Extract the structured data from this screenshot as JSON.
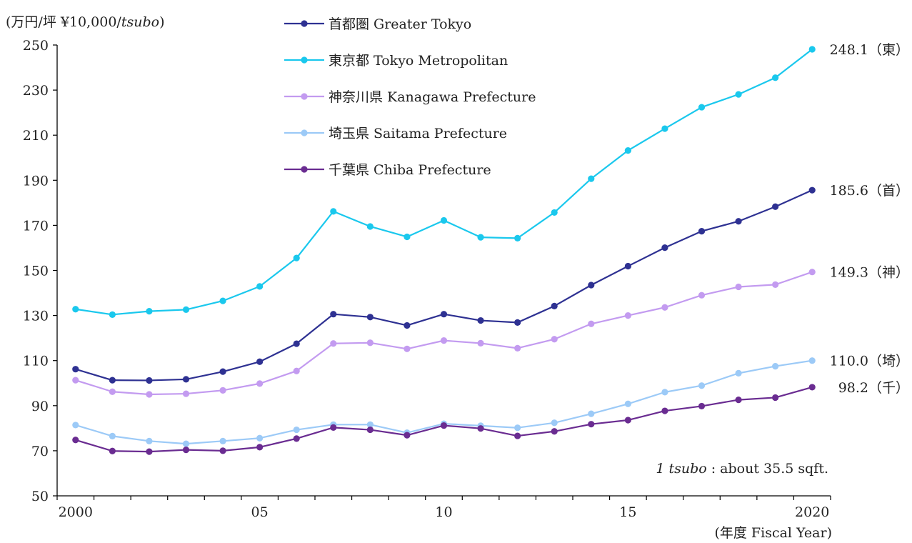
{
  "chart_data": {
    "type": "line",
    "ylabel": {
      "prefix": "(万円/坪 ¥10,000/",
      "italic": "tsubo",
      "suffix": ")"
    },
    "xlabel": "(年度 Fiscal Year)",
    "ylim": [
      50,
      250
    ],
    "yticks": [
      50,
      70,
      90,
      110,
      130,
      150,
      170,
      190,
      210,
      230,
      250
    ],
    "xlim": [
      1999.5,
      2020.5
    ],
    "xticks": [
      {
        "value": 2000,
        "label": "2000"
      },
      {
        "value": 2005,
        "label": "05"
      },
      {
        "value": 2010,
        "label": "10"
      },
      {
        "value": 2015,
        "label": "15"
      },
      {
        "value": 2020,
        "label": "2020"
      }
    ],
    "x": [
      2000,
      2001,
      2002,
      2003,
      2004,
      2005,
      2006,
      2007,
      2008,
      2009,
      2010,
      2011,
      2012,
      2013,
      2014,
      2015,
      2016,
      2017,
      2018,
      2019,
      2020
    ],
    "series": [
      {
        "name": "首都圏 Greater Tokyo",
        "color": "#2e3192",
        "values": [
          106.2,
          101.3,
          101.2,
          101.7,
          105.1,
          109.5,
          117.5,
          130.6,
          129.3,
          125.6,
          130.6,
          127.8,
          126.9,
          134.2,
          143.5,
          151.9,
          160.1,
          167.4,
          171.8,
          178.3,
          185.6
        ],
        "end_label": "185.6（首）"
      },
      {
        "name": "東京都 Tokyo Metropolitan",
        "color": "#1ac8ed",
        "values": [
          132.8,
          130.4,
          131.9,
          132.6,
          136.5,
          142.9,
          155.5,
          176.2,
          169.5,
          164.9,
          172.2,
          164.7,
          164.3,
          175.7,
          190.7,
          203.2,
          212.9,
          222.4,
          228.1,
          235.5,
          248.1
        ],
        "end_label": "248.1（東）"
      },
      {
        "name": "神奈川県 Kanagawa Prefecture",
        "color": "#c39bf0",
        "values": [
          101.3,
          96.2,
          95.0,
          95.3,
          96.8,
          99.8,
          105.4,
          117.6,
          117.9,
          115.2,
          118.9,
          117.7,
          115.5,
          119.5,
          126.3,
          130.0,
          133.6,
          139.0,
          142.7,
          143.7,
          149.3
        ],
        "end_label": "149.3（神）"
      },
      {
        "name": "埼玉県 Saitama Prefecture",
        "color": "#9ccaf7",
        "values": [
          81.4,
          76.5,
          74.3,
          73.1,
          74.3,
          75.6,
          79.3,
          81.6,
          81.6,
          78.0,
          82.0,
          81.1,
          80.2,
          82.4,
          86.4,
          90.8,
          96.0,
          98.9,
          104.4,
          107.5,
          110.0
        ],
        "end_label": "110.0（埼）"
      },
      {
        "name": "千葉県 Chiba Prefecture",
        "color": "#6a2c91",
        "values": [
          74.8,
          69.9,
          69.6,
          70.4,
          70.0,
          71.6,
          75.4,
          80.3,
          79.3,
          76.9,
          81.2,
          79.9,
          76.6,
          78.6,
          81.8,
          83.6,
          87.7,
          89.8,
          92.6,
          93.6,
          98.2
        ],
        "end_label": "98.2（千）"
      }
    ],
    "annotation": {
      "italic": "1 tsubo",
      "text": " : about 35.5 sqft."
    },
    "grid": false,
    "legend": "top-center"
  }
}
